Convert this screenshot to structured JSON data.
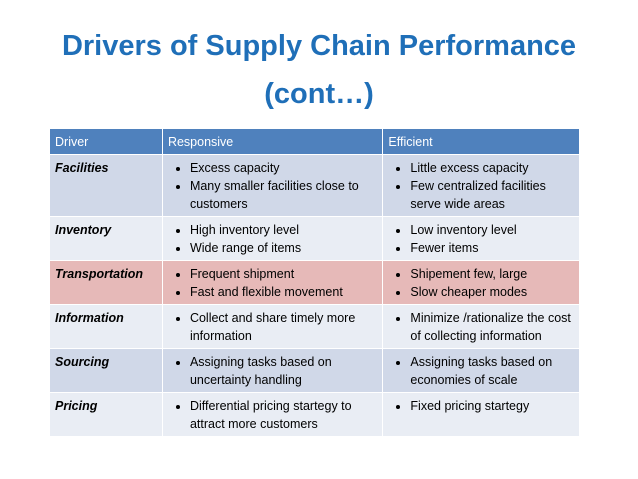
{
  "title": [
    "Drivers of Supply Chain Performance",
    "(cont…)"
  ],
  "table": {
    "header": [
      "Driver",
      "Responsive",
      "Efficient"
    ],
    "rows": [
      {
        "driver": "Facilities",
        "responsive": [
          "Excess capacity",
          "Many smaller facilities close to customers"
        ],
        "efficient": [
          "Little excess capacity",
          "Few centralized facilities serve wide areas"
        ]
      },
      {
        "driver": "Inventory",
        "responsive": [
          "High inventory level",
          "Wide range of items"
        ],
        "efficient": [
          "Low inventory level",
          "Fewer items"
        ]
      },
      {
        "driver": "Transportation",
        "responsive": [
          "Frequent shipment",
          "Fast and flexible movement"
        ],
        "efficient": [
          "Shipement few, large",
          "Slow cheaper modes"
        ]
      },
      {
        "driver": "Information",
        "responsive": [
          "Collect and share timely more information"
        ],
        "efficient": [
          "Minimize /rationalize the cost of collecting information"
        ]
      },
      {
        "driver": "Sourcing",
        "responsive": [
          "Assigning tasks based on uncertainty handling"
        ],
        "efficient": [
          "Assigning tasks based on economies of scale"
        ]
      },
      {
        "driver": "Pricing",
        "responsive": [
          "Differential pricing startegy to attract more customers"
        ],
        "efficient": [
          "Fixed pricing startegy"
        ]
      }
    ]
  }
}
